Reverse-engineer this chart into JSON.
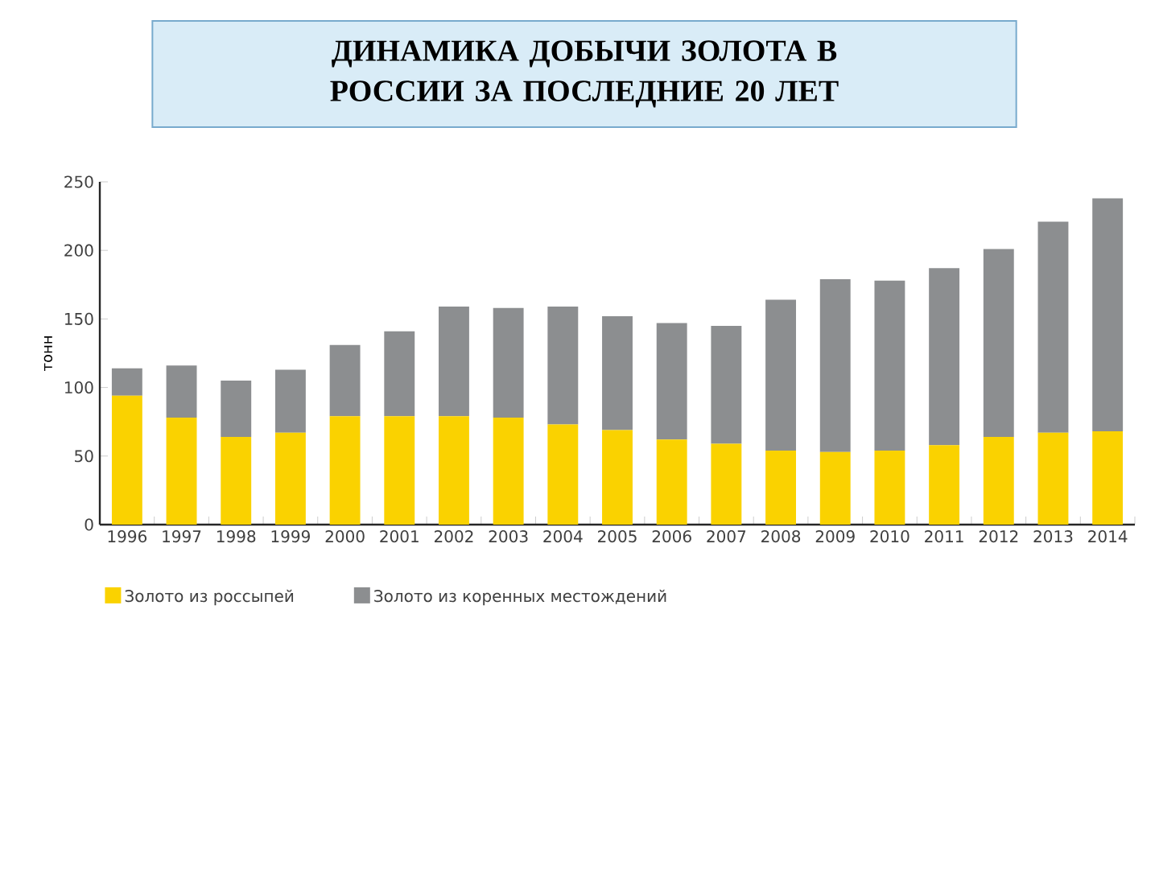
{
  "chart_data": {
    "type": "bar",
    "stacked": true,
    "title": "ДИНАМИКА ДОБЫЧИ ЗОЛОТА В РОССИИ ЗА ПОСЛЕДНИЕ 20 ЛЕТ",
    "ylabel": "тонн",
    "categories": [
      "1996",
      "1997",
      "1998",
      "1999",
      "2000",
      "2001",
      "2002",
      "2003",
      "2004",
      "2005",
      "2006",
      "2007",
      "2008",
      "2009",
      "2010",
      "2011",
      "2012",
      "2013",
      "2014"
    ],
    "series": [
      {
        "name": "Золото из россыпей",
        "color": "#fad200",
        "values": [
          94,
          78,
          64,
          67,
          79,
          79,
          79,
          78,
          73,
          69,
          62,
          59,
          54,
          53,
          54,
          58,
          64,
          67,
          68
        ]
      },
      {
        "name": "Золото из коренных местождений",
        "color": "#8c8e90",
        "values": [
          20,
          38,
          41,
          46,
          52,
          62,
          80,
          80,
          86,
          83,
          85,
          86,
          110,
          126,
          124,
          129,
          137,
          154,
          170
        ]
      }
    ],
    "ylim": [
      0,
      250
    ],
    "yticks": [
      0,
      50,
      100,
      150,
      200,
      250
    ],
    "legend": "bottom"
  }
}
